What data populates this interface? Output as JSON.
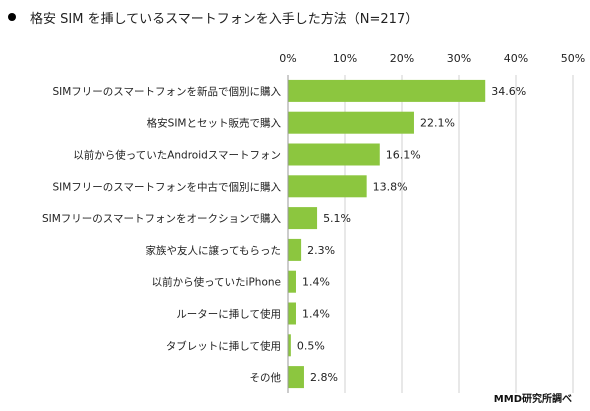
{
  "title": "格安 SIM を挿しているスマートフォンを入手した方法（N=217）",
  "source": "MMD研究所調べ",
  "colors": {
    "bar": "#8cc63f",
    "grid": "#d0d0d0",
    "axis": "#999999"
  },
  "chart_data": {
    "type": "bar",
    "orientation": "horizontal",
    "title": "格安 SIM を挿しているスマートフォンを入手した方法（N=217）",
    "categories": [
      "SIMフリーのスマートフォンを新品で個別に購入",
      "格安SIMとセット販売で購入",
      "以前から使っていたAndroidスマートフォン",
      "SIMフリーのスマートフォンを中古で個別に購入",
      "SIMフリーのスマートフォンをオークションで購入",
      "家族や友人に譲ってもらった",
      "以前から使っていたiPhone",
      "ルーターに挿して使用",
      "タブレットに挿して使用",
      "その他"
    ],
    "values": [
      34.6,
      22.1,
      16.1,
      13.8,
      5.1,
      2.3,
      1.4,
      1.4,
      0.5,
      2.8
    ],
    "value_labels": [
      "34.6%",
      "22.1%",
      "16.1%",
      "13.8%",
      "5.1%",
      "2.3%",
      "1.4%",
      "1.4%",
      "0.5%",
      "2.8%"
    ],
    "xlim": [
      0,
      50
    ],
    "x_ticks": [
      0,
      10,
      20,
      30,
      40,
      50
    ],
    "x_tick_labels": [
      "0%",
      "10%",
      "20%",
      "30%",
      "40%",
      "50%"
    ],
    "grid": true,
    "legend": "none"
  }
}
